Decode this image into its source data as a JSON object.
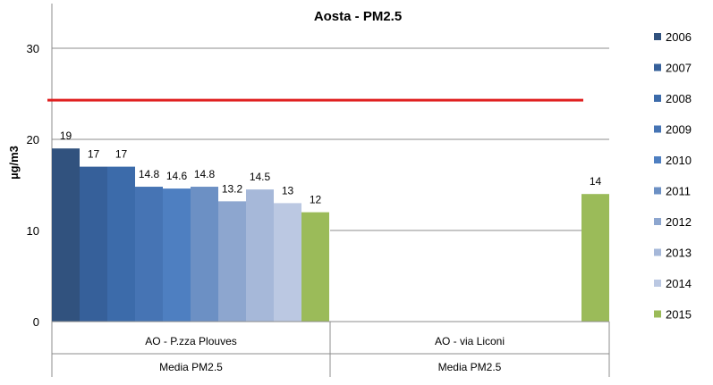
{
  "chart_data": {
    "type": "bar",
    "title": "Aosta - PM2.5",
    "ylabel": "µg/m3",
    "ylim": [
      0,
      30
    ],
    "yticks": [
      0,
      10,
      20,
      30
    ],
    "grid": true,
    "legend_position": "right",
    "reference_line": {
      "value": 24.3,
      "color": "#E02020"
    },
    "groups": [
      {
        "label": "AO - P.zza Plouves",
        "sublabel": "Media PM2.5"
      },
      {
        "label": "AO - via Liconi",
        "sublabel": "Media PM2.5"
      }
    ],
    "series": [
      {
        "name": "2006",
        "color": "#31527E",
        "values": [
          19,
          null
        ]
      },
      {
        "name": "2007",
        "color": "#36609A",
        "values": [
          17,
          null
        ]
      },
      {
        "name": "2008",
        "color": "#3C6BAA",
        "values": [
          17,
          null
        ]
      },
      {
        "name": "2009",
        "color": "#4674B4",
        "values": [
          14.8,
          null
        ]
      },
      {
        "name": "2010",
        "color": "#4E7FC1",
        "values": [
          14.6,
          null
        ]
      },
      {
        "name": "2011",
        "color": "#6C90C4",
        "values": [
          14.8,
          null
        ]
      },
      {
        "name": "2012",
        "color": "#8DA6CF",
        "values": [
          13.2,
          null
        ]
      },
      {
        "name": "2013",
        "color": "#A6B8D9",
        "values": [
          14.5,
          null
        ]
      },
      {
        "name": "2014",
        "color": "#BBC8E2",
        "values": [
          13,
          null
        ]
      },
      {
        "name": "2015",
        "color": "#9BBB59",
        "values": [
          12,
          14
        ]
      }
    ]
  }
}
